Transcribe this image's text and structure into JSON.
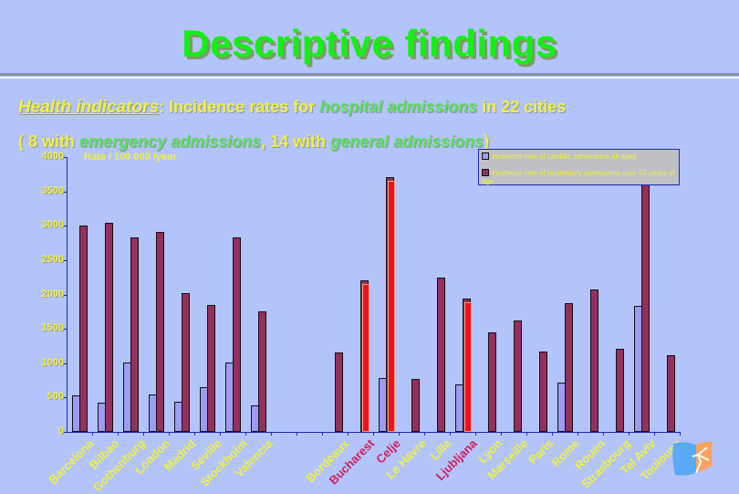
{
  "slide": {
    "title": "Descriptive findings",
    "line1": {
      "prefix": "Health indicators",
      "colon": ":",
      "text_a": " Incidence rates for ",
      "highlight": "hospital admissions",
      "text_b": " in 22 cities"
    },
    "line2": {
      "part_a": "( 8 with ",
      "highlight_a": "emergency admissions",
      "part_b": ", 14 with ",
      "highlight_b": "general admissions",
      "part_c": ")"
    }
  },
  "chart_data": {
    "type": "bar",
    "title": "",
    "ylabel": "Rate / 100 000 /year",
    "xlabel": "",
    "ylim": [
      0,
      4000
    ],
    "yticks": [
      "0",
      "500",
      "1000",
      "1500",
      "2000",
      "2500",
      "3000",
      "3500",
      "4000"
    ],
    "grid": false,
    "legend_position": "top-right",
    "categories": [
      "Barcelona",
      "Bilbao",
      "Gothenburg",
      "London",
      "Madrid",
      "Seville",
      "Stockholm",
      "Valencia",
      "",
      "",
      "Bordeaux",
      "Bucharest",
      "Celje",
      "Le Havre",
      "Lille",
      "Ljubljana",
      "Lyon",
      "Marseille",
      "Paris",
      "Rome",
      "Rouen",
      "Strasbourg",
      "Tel Aviv",
      "Toulouse"
    ],
    "highlighted_categories": [
      "Bucharest",
      "Celje",
      "Ljubljana"
    ],
    "series": [
      {
        "name": "incidence rate of cardiac admissions all ages",
        "color": "#9c9cf2",
        "values": [
          530,
          420,
          1010,
          550,
          440,
          650,
          1010,
          390,
          null,
          null,
          null,
          null,
          790,
          null,
          null,
          690,
          null,
          null,
          null,
          720,
          null,
          null,
          1840,
          null
        ]
      },
      {
        "name": "incidence rate of respiratory admissions over 65 years of age",
        "color": "#93305e",
        "values": [
          3000,
          3040,
          2830,
          2910,
          2020,
          1850,
          2830,
          1750,
          null,
          null,
          1160,
          2210,
          3710,
          770,
          2250,
          1940,
          1450,
          1620,
          1170,
          1880,
          2070,
          1210,
          3900,
          1120
        ]
      }
    ]
  },
  "legend": {
    "items": [
      {
        "label": "incidence rate of cardiac admissions all ages",
        "color": "#9c9cf2"
      },
      {
        "label": "incidence rate of respiratory admissions over 65 years of age",
        "color": "#93305e"
      }
    ]
  },
  "logo": {
    "icon": "flag-logo-icon"
  }
}
